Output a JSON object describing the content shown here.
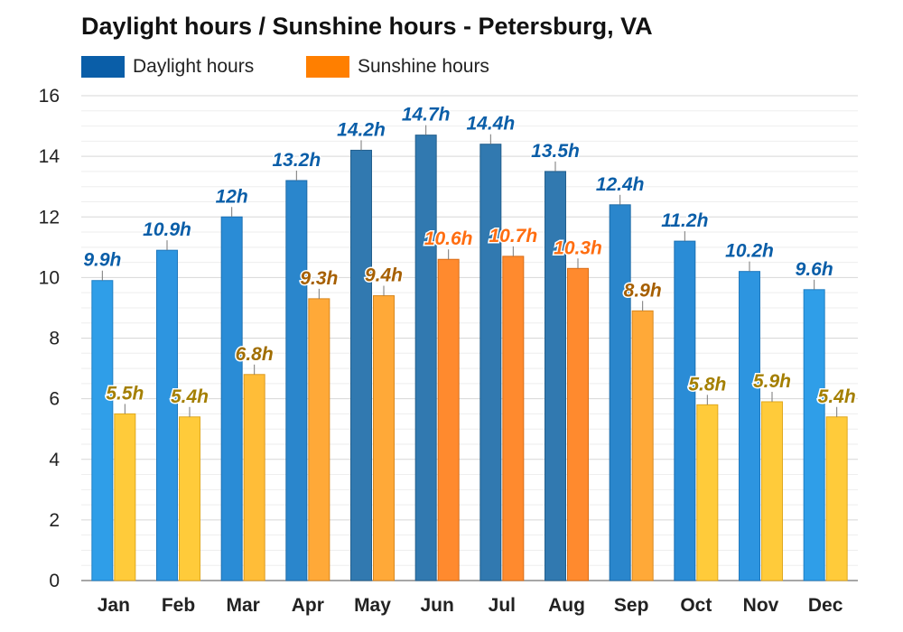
{
  "title": "Daylight hours / Sunshine hours - Petersburg, VA",
  "legend": {
    "daylight_label": "Daylight hours",
    "sunshine_label": "Sunshine hours",
    "daylight_color": "#0a5ea8",
    "sunshine_color": "#ff7f00"
  },
  "chart_data": {
    "type": "bar",
    "title": "Daylight hours / Sunshine hours - Petersburg, VA",
    "xlabel": "",
    "ylabel": "",
    "ylim": [
      0,
      16
    ],
    "yticks": [
      0,
      2,
      4,
      6,
      8,
      10,
      12,
      14,
      16
    ],
    "grid": true,
    "legend_position": "top-left",
    "categories": [
      "Jan",
      "Feb",
      "Mar",
      "Apr",
      "May",
      "Jun",
      "Jul",
      "Aug",
      "Sep",
      "Oct",
      "Nov",
      "Dec"
    ],
    "series": [
      {
        "name": "Daylight hours",
        "values": [
          9.9,
          10.9,
          12,
          13.2,
          14.2,
          14.7,
          14.4,
          13.5,
          12.4,
          11.2,
          10.2,
          9.6
        ],
        "labels": [
          "9.9h",
          "10.9h",
          "12h",
          "13.2h",
          "14.2h",
          "14.7h",
          "14.4h",
          "13.5h",
          "12.4h",
          "11.2h",
          "10.2h",
          "9.6h"
        ]
      },
      {
        "name": "Sunshine hours",
        "values": [
          5.5,
          5.4,
          6.8,
          9.3,
          9.4,
          10.6,
          10.7,
          10.3,
          8.9,
          5.8,
          5.9,
          5.4
        ],
        "labels": [
          "5.5h",
          "5.4h",
          "6.8h",
          "9.3h",
          "9.4h",
          "10.6h",
          "10.7h",
          "10.3h",
          "8.9h",
          "5.8h",
          "5.9h",
          "5.4h"
        ]
      }
    ]
  }
}
